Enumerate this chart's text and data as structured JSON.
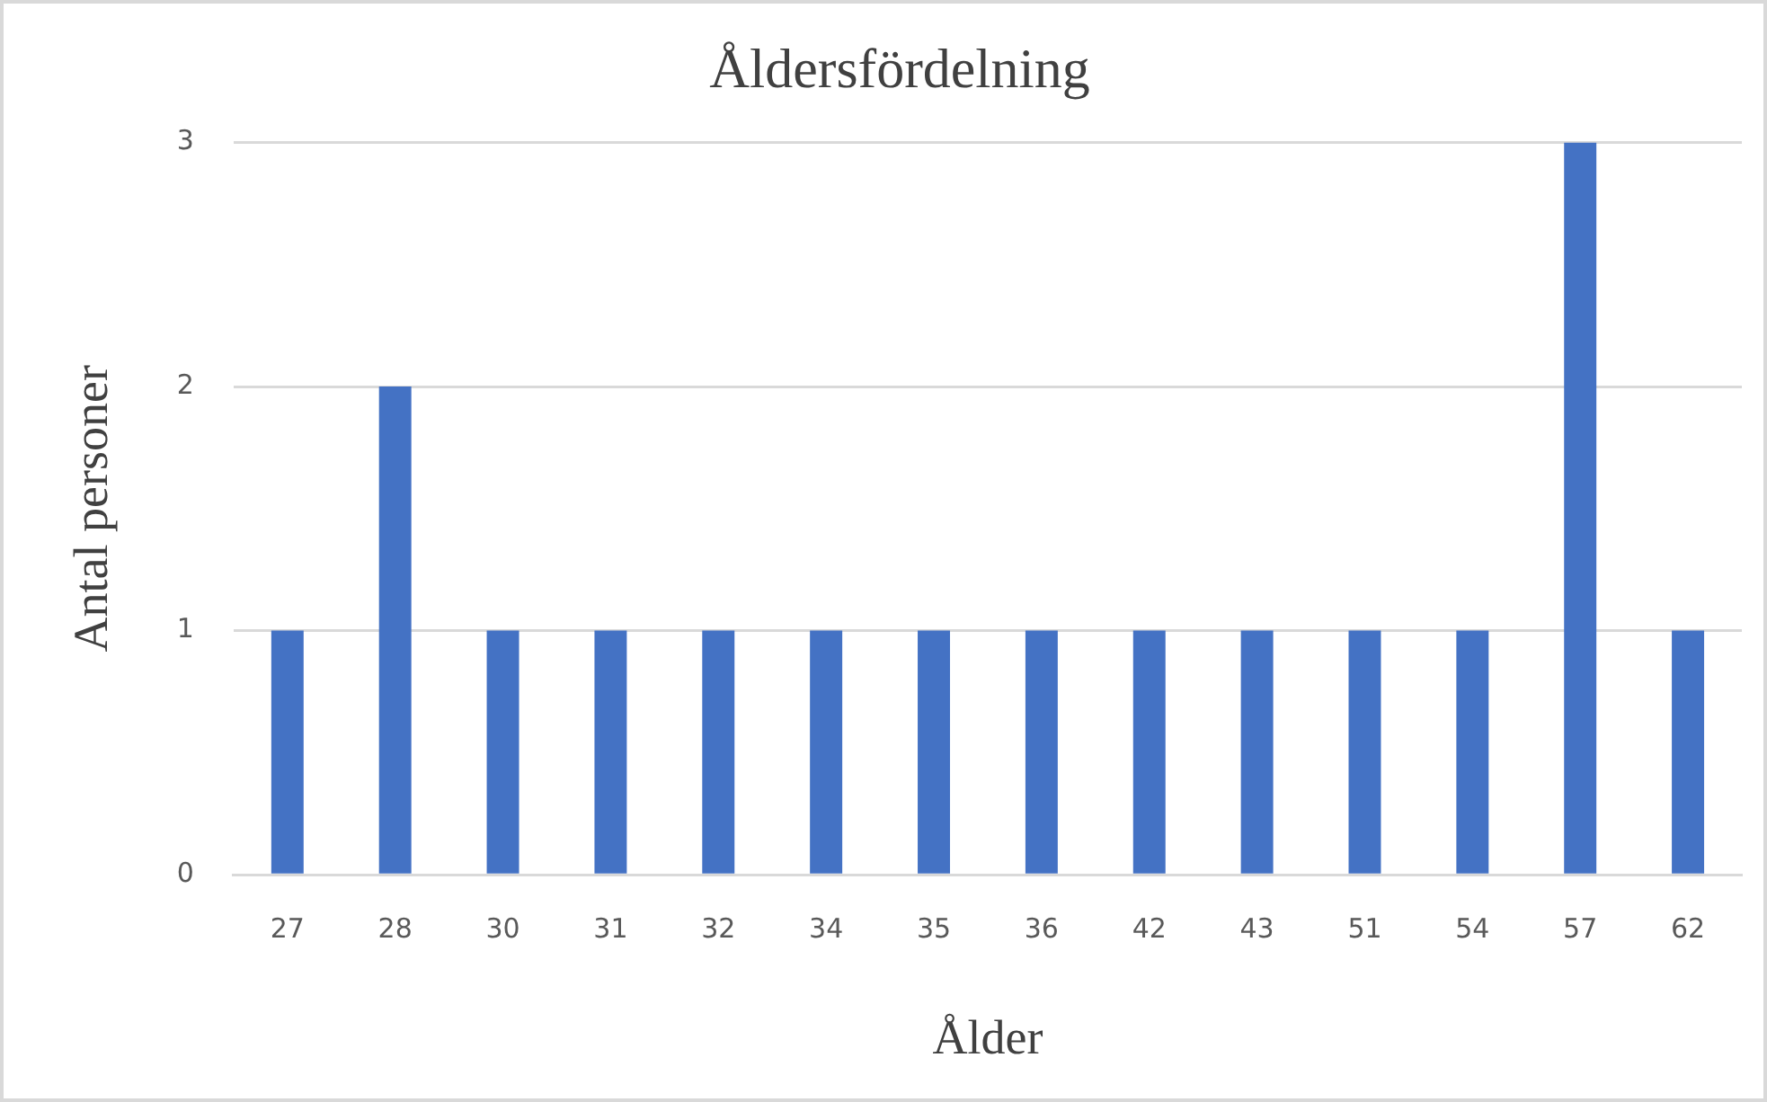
{
  "chart_data": {
    "type": "bar",
    "title": "Åldersfördelning",
    "xlabel": "Ålder",
    "ylabel": "Antal personer",
    "categories": [
      "27",
      "28",
      "30",
      "31",
      "32",
      "34",
      "35",
      "36",
      "42",
      "43",
      "51",
      "54",
      "57",
      "62"
    ],
    "values": [
      1,
      2,
      1,
      1,
      1,
      1,
      1,
      1,
      1,
      1,
      1,
      1,
      3,
      1
    ],
    "color": "#4472c4",
    "ylim": [
      0,
      3
    ],
    "yticks": [
      0,
      1,
      2,
      3
    ],
    "grid": "y",
    "legend": false
  }
}
